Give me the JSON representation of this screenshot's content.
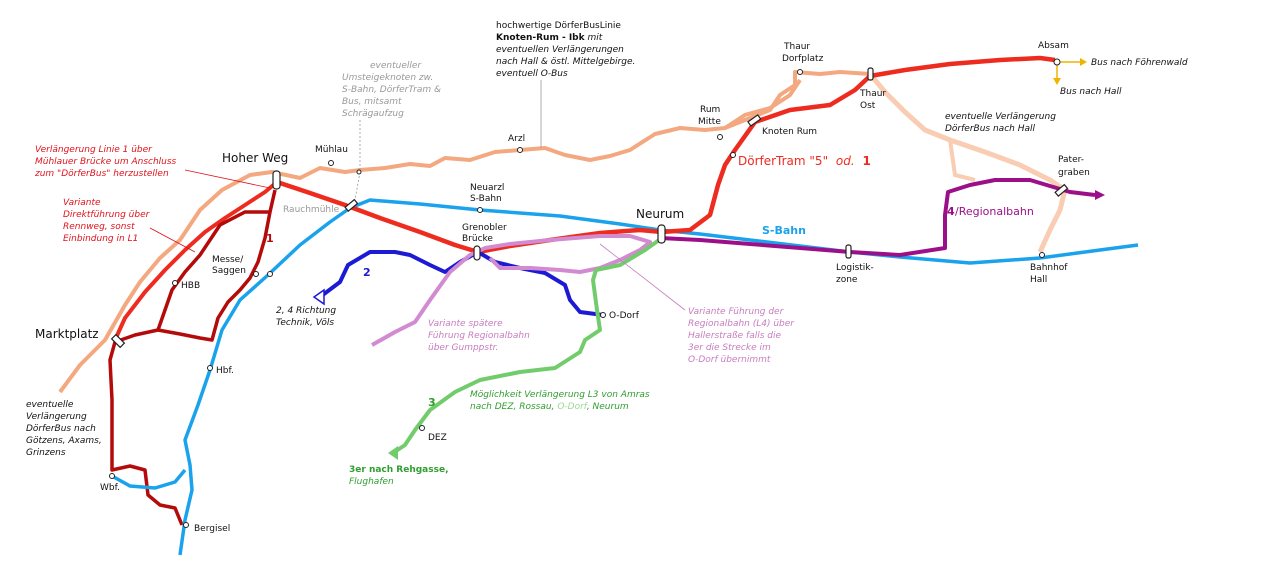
{
  "stations": {
    "hoher_weg": "Hoher Weg",
    "muehlau": "Mühlau",
    "rauchmuehle": "Rauchmühle",
    "messe_1": "Messe/",
    "messe_2": "Saggen",
    "hbb": "HBB",
    "marktplatz": "Marktplatz",
    "hbf": "Hbf.",
    "wbf": "Wbf.",
    "bergisel": "Bergisel",
    "arzl": "Arzl",
    "neuarzl_1": "Neuarzl",
    "neuarzl_2": "S-Bahn",
    "grenobler_1": "Grenobler",
    "grenobler_2": "Brücke",
    "neurum": "Neurum",
    "odorf": "O-Dorf",
    "dez": "DEZ",
    "rum_1": "Rum",
    "rum_2": "Mitte",
    "knoten_rum": "Knoten Rum",
    "thaur_dorf_1": "Thaur",
    "thaur_dorf_2": "Dorfplatz",
    "thaur_ost_1": "Thaur",
    "thaur_ost_2": "Ost",
    "absam": "Absam",
    "pater_1": "Pater-",
    "pater_2": "graben",
    "logistik_1": "Logistik-",
    "logistik_2": "zone",
    "bahnhof_1": "Bahnhof",
    "bahnhof_2": "Hall"
  },
  "lines": {
    "line_1_num": "1",
    "line_2_num": "2",
    "line_3_num": "3",
    "line_4_num": "4",
    "regionalbahn": "/Regionalbahn",
    "sbahn": "S-Bahn",
    "doerfertram_text": "DörferTram \"5\"",
    "doerfertram_od": "od.",
    "doerfertram_num": "1"
  },
  "notes": {
    "linie1_a": "Verlängerung Linie 1 über",
    "linie1_b": "Mühlauer Brücke um Anschluss",
    "linie1_c": "zum \"DörferBus\" herzustellen",
    "variante_a": "Variante",
    "variante_b": "Direktführung über",
    "variante_c": "Rennweg, sonst",
    "variante_d": "Einbindung in L1",
    "umsteig_a": "eventueller",
    "umsteig_b": "Umsteigeknoten zw.",
    "umsteig_c": "S-Bahn, DörferTram &",
    "umsteig_d": "Bus, mitsamt",
    "umsteig_e": "Schrägaufzug",
    "hq_a": "hochwertige DörferBusLinie",
    "hq_b_bold": "Knoten-Rum - Ibk",
    "hq_b_rest": " mit",
    "hq_c": "eventuellen Verlängerungen",
    "hq_d": "nach Hall & östl. Mittelgebirge.",
    "hq_e": "eventuell O-Bus",
    "l24_a": "2, 4 Richtung",
    "l24_b": "Technik, Völs",
    "gumpp_a": "Variante spätere",
    "gumpp_b": "Führung Regionalbahn",
    "gumpp_c": "über Gumppstr.",
    "l4_a": "Variante Führung der",
    "l4_b": "Regionalbahn (L4) über",
    "l4_c": "Hallerstraße falls die",
    "l4_d": "3er die Strecke im",
    "l4_e": "O-Dorf übernimmt",
    "l3_a": "Möglichkeit Verlängerung L3 von Amras",
    "l3_b1": "nach DEZ, Rossau, ",
    "l3_b2": "O-Dorf",
    "l3_b3": ", Neurum",
    "rehgasse_a": "3er nach Rehgasse,",
    "rehgasse_b": "Flughafen",
    "goetzens_a": "eventuelle",
    "goetzens_b": "Verlängerung",
    "goetzens_c": "DörferBus nach",
    "goetzens_d": "Götzens, Axams,",
    "goetzens_e": "Grinzens",
    "hall_a": "eventuelle Verlängerung",
    "hall_b": "DörferBus nach Hall",
    "bus_foehren": "Bus nach Föhrenwald",
    "bus_hall": "Bus nach Hall"
  },
  "colors": {
    "tram_red": "#ee2b1f",
    "dark_red": "#b50a0a",
    "bus_orange": "#f4a880",
    "bus_light": "#f8cdb4",
    "sbahn_blue": "#1aa3ec",
    "line2_blue": "#1d1ad4",
    "regional_purple": "#9b1088",
    "variant_pink": "#d28ad0",
    "line3_green": "#72cc6c",
    "arrow_yellow": "#f0b400"
  }
}
